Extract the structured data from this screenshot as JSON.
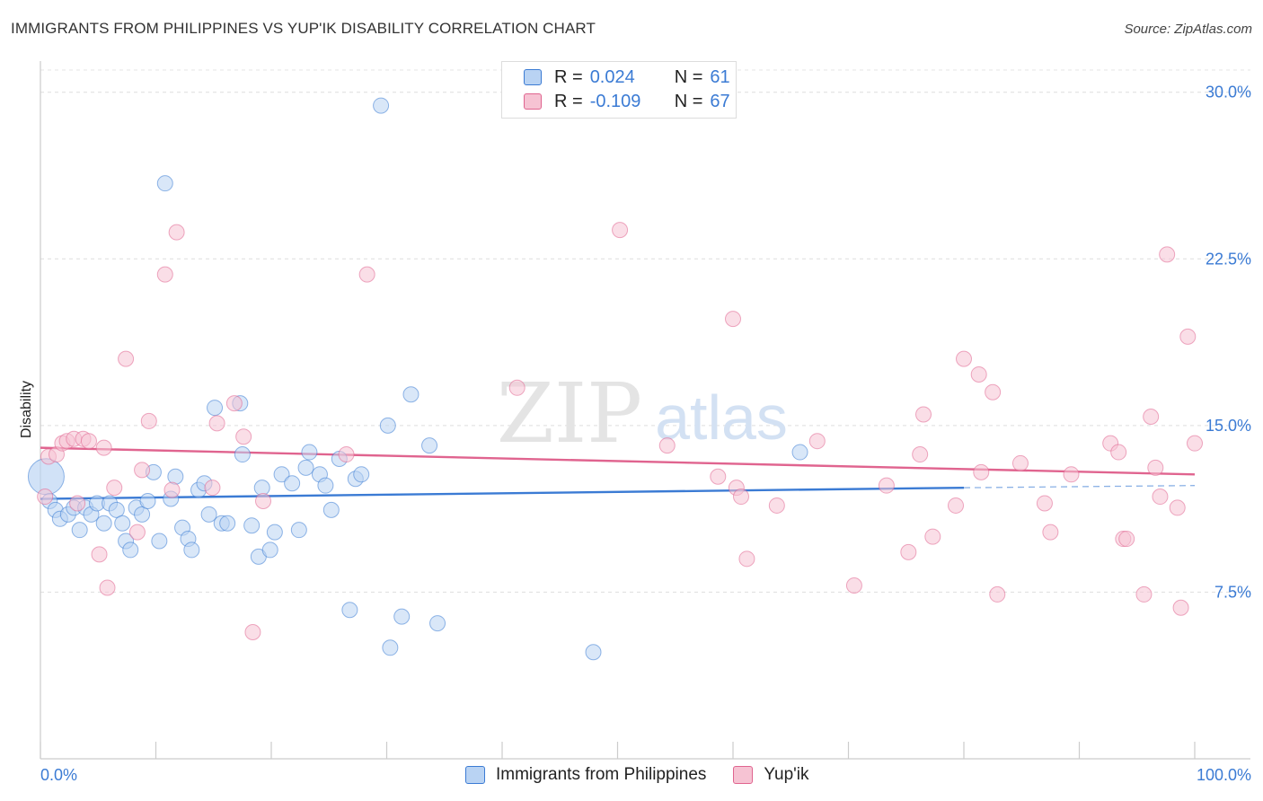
{
  "header": {
    "title": "IMMIGRANTS FROM PHILIPPINES VS YUP'IK DISABILITY CORRELATION CHART",
    "source": "Source: ZipAtlas.com"
  },
  "watermark": {
    "zip": "ZIP",
    "atlas": "atlas"
  },
  "legend": {
    "rows": [
      {
        "r_label": "R =",
        "r_value": "0.024",
        "n_label": "N =",
        "n_value": "61"
      },
      {
        "r_label": "R =",
        "r_value": "-0.109",
        "n_label": "N =",
        "n_value": "67"
      }
    ]
  },
  "bottom_legend": {
    "items": [
      "Immigrants from Philippines",
      "Yup'ik"
    ]
  },
  "chart_data": {
    "type": "scatter",
    "title": "IMMIGRANTS FROM PHILIPPINES VS YUP'IK DISABILITY CORRELATION CHART",
    "xlabel": "",
    "ylabel": "Disability",
    "xlim": [
      0,
      100
    ],
    "ylim": [
      0,
      31
    ],
    "x_tick_labels": [
      "0.0%",
      "100.0%"
    ],
    "y_ticks": [
      7.5,
      15.0,
      22.5,
      30.0
    ],
    "y_tick_labels": [
      "7.5%",
      "15.0%",
      "22.5%",
      "30.0%"
    ],
    "grid": "horizontal dashed",
    "legend_position": "top-center",
    "colors": {
      "blue": "#3b7bd4",
      "blue_fill": "#b9d3f3",
      "pink": "#e0648f",
      "pink_fill": "#f6c3d3"
    },
    "series": [
      {
        "name": "Immigrants from Philippines",
        "color": "#3b7bd4",
        "r": 0.024,
        "n": 61,
        "trend": {
          "x0": 0,
          "y0": 11.7,
          "x1": 80,
          "y1": 12.2,
          "dash_to": 100,
          "dash_y": 12.3
        },
        "points": [
          [
            0.5,
            12.7
          ],
          [
            0.8,
            11.6
          ],
          [
            1.3,
            11.2
          ],
          [
            1.7,
            10.8
          ],
          [
            2.4,
            11.0
          ],
          [
            2.9,
            11.3
          ],
          [
            3.4,
            10.3
          ],
          [
            3.9,
            11.3
          ],
          [
            4.4,
            11.0
          ],
          [
            4.9,
            11.5
          ],
          [
            5.5,
            10.6
          ],
          [
            6.0,
            11.5
          ],
          [
            6.6,
            11.2
          ],
          [
            7.1,
            10.6
          ],
          [
            7.4,
            9.8
          ],
          [
            7.8,
            9.4
          ],
          [
            8.3,
            11.3
          ],
          [
            8.8,
            11.0
          ],
          [
            9.3,
            11.6
          ],
          [
            9.8,
            12.9
          ],
          [
            10.3,
            9.8
          ],
          [
            10.8,
            25.9
          ],
          [
            11.3,
            11.7
          ],
          [
            11.7,
            12.7
          ],
          [
            12.3,
            10.4
          ],
          [
            12.8,
            9.9
          ],
          [
            13.1,
            9.4
          ],
          [
            13.7,
            12.1
          ],
          [
            14.2,
            12.4
          ],
          [
            14.6,
            11.0
          ],
          [
            15.1,
            15.8
          ],
          [
            15.7,
            10.6
          ],
          [
            16.2,
            10.6
          ],
          [
            17.3,
            16.0
          ],
          [
            17.5,
            13.7
          ],
          [
            18.3,
            10.5
          ],
          [
            18.9,
            9.1
          ],
          [
            19.2,
            12.2
          ],
          [
            19.9,
            9.4
          ],
          [
            20.3,
            10.2
          ],
          [
            20.9,
            12.8
          ],
          [
            21.8,
            12.4
          ],
          [
            22.4,
            10.3
          ],
          [
            23.0,
            13.1
          ],
          [
            23.3,
            13.8
          ],
          [
            24.2,
            12.8
          ],
          [
            24.7,
            12.3
          ],
          [
            25.2,
            11.2
          ],
          [
            25.9,
            13.5
          ],
          [
            26.8,
            6.7
          ],
          [
            27.3,
            12.6
          ],
          [
            27.8,
            12.8
          ],
          [
            29.5,
            29.4
          ],
          [
            30.1,
            15.0
          ],
          [
            30.3,
            5.0
          ],
          [
            31.3,
            6.4
          ],
          [
            32.1,
            16.4
          ],
          [
            33.7,
            14.1
          ],
          [
            34.4,
            6.1
          ],
          [
            47.9,
            4.8
          ],
          [
            65.8,
            13.8
          ]
        ]
      },
      {
        "name": "Yup'ik",
        "color": "#e0648f",
        "r": -0.109,
        "n": 67,
        "trend": {
          "x0": 0,
          "y0": 14.0,
          "x1": 100,
          "y1": 12.8
        },
        "points": [
          [
            0.4,
            11.8
          ],
          [
            0.7,
            13.6
          ],
          [
            1.4,
            13.7
          ],
          [
            1.9,
            14.2
          ],
          [
            2.3,
            14.3
          ],
          [
            2.9,
            14.4
          ],
          [
            3.2,
            11.5
          ],
          [
            3.7,
            14.4
          ],
          [
            4.2,
            14.3
          ],
          [
            5.1,
            9.2
          ],
          [
            5.5,
            14.0
          ],
          [
            5.8,
            7.7
          ],
          [
            6.4,
            12.2
          ],
          [
            7.4,
            18.0
          ],
          [
            8.4,
            10.2
          ],
          [
            8.8,
            13.0
          ],
          [
            9.4,
            15.2
          ],
          [
            10.8,
            21.8
          ],
          [
            11.4,
            12.1
          ],
          [
            11.8,
            23.7
          ],
          [
            14.9,
            12.2
          ],
          [
            15.3,
            15.1
          ],
          [
            16.8,
            16.0
          ],
          [
            17.6,
            14.5
          ],
          [
            18.4,
            5.7
          ],
          [
            19.3,
            11.6
          ],
          [
            26.5,
            13.7
          ],
          [
            28.3,
            21.8
          ],
          [
            41.3,
            16.7
          ],
          [
            50.2,
            23.8
          ],
          [
            54.3,
            14.1
          ],
          [
            58.7,
            12.7
          ],
          [
            60.0,
            19.8
          ],
          [
            60.3,
            12.2
          ],
          [
            60.7,
            11.8
          ],
          [
            61.2,
            9.0
          ],
          [
            63.8,
            11.4
          ],
          [
            67.3,
            14.3
          ],
          [
            70.5,
            7.8
          ],
          [
            73.3,
            12.3
          ],
          [
            75.2,
            9.3
          ],
          [
            76.2,
            13.7
          ],
          [
            76.5,
            15.5
          ],
          [
            77.3,
            10.0
          ],
          [
            79.3,
            11.4
          ],
          [
            80.0,
            18.0
          ],
          [
            81.3,
            17.3
          ],
          [
            81.5,
            12.9
          ],
          [
            82.5,
            16.5
          ],
          [
            82.9,
            7.4
          ],
          [
            84.9,
            13.3
          ],
          [
            87.0,
            11.5
          ],
          [
            87.5,
            10.2
          ],
          [
            89.3,
            12.8
          ],
          [
            92.7,
            14.2
          ],
          [
            93.4,
            13.8
          ],
          [
            93.8,
            9.9
          ],
          [
            94.1,
            9.9
          ],
          [
            95.6,
            7.4
          ],
          [
            96.2,
            15.4
          ],
          [
            96.6,
            13.1
          ],
          [
            97.0,
            11.8
          ],
          [
            97.6,
            22.7
          ],
          [
            98.5,
            11.3
          ],
          [
            98.8,
            6.8
          ],
          [
            99.4,
            19.0
          ],
          [
            100.0,
            14.2
          ]
        ]
      }
    ]
  }
}
